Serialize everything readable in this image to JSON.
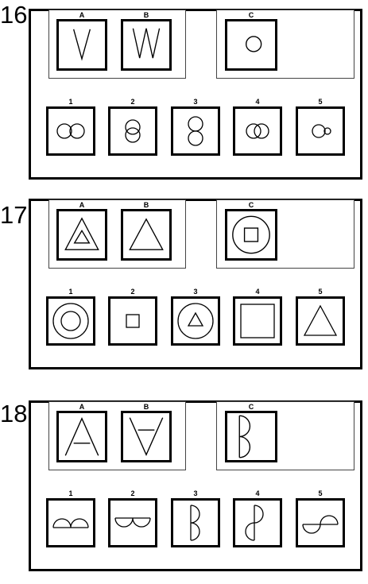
{
  "questions": [
    {
      "number": "16",
      "example_labels": [
        "A",
        "B",
        "C"
      ],
      "option_labels": [
        "1",
        "2",
        "3",
        "4",
        "5"
      ],
      "figures": {
        "A": "letter-v",
        "B": "letter-w",
        "C": "small-circle",
        "options": [
          "two-circles-horizontal",
          "two-circles-vertical-overlap",
          "two-circles-vertical-stacked",
          "two-circles-horizontal-overlap",
          "circle-with-small-circle"
        ]
      }
    },
    {
      "number": "17",
      "example_labels": [
        "A",
        "B",
        "C"
      ],
      "option_labels": [
        "1",
        "2",
        "3",
        "4",
        "5"
      ],
      "figures": {
        "A": "triangle-in-triangle",
        "B": "large-triangle",
        "C": "square-in-circle",
        "options": [
          "circle-in-circle",
          "small-square",
          "triangle-in-circle",
          "large-square",
          "large-triangle"
        ]
      }
    },
    {
      "number": "18",
      "example_labels": [
        "A",
        "B",
        "C"
      ],
      "option_labels": [
        "1",
        "2",
        "3",
        "4",
        "5"
      ],
      "figures": {
        "A": "letter-a",
        "B": "inverted-a",
        "C": "letter-b",
        "options": [
          "b-rotated-bumps-up",
          "b-rotated-bumps-down",
          "b-mirrored-smaller",
          "b-halves-opposite",
          "b-halves-horizontal-wave"
        ]
      }
    }
  ]
}
